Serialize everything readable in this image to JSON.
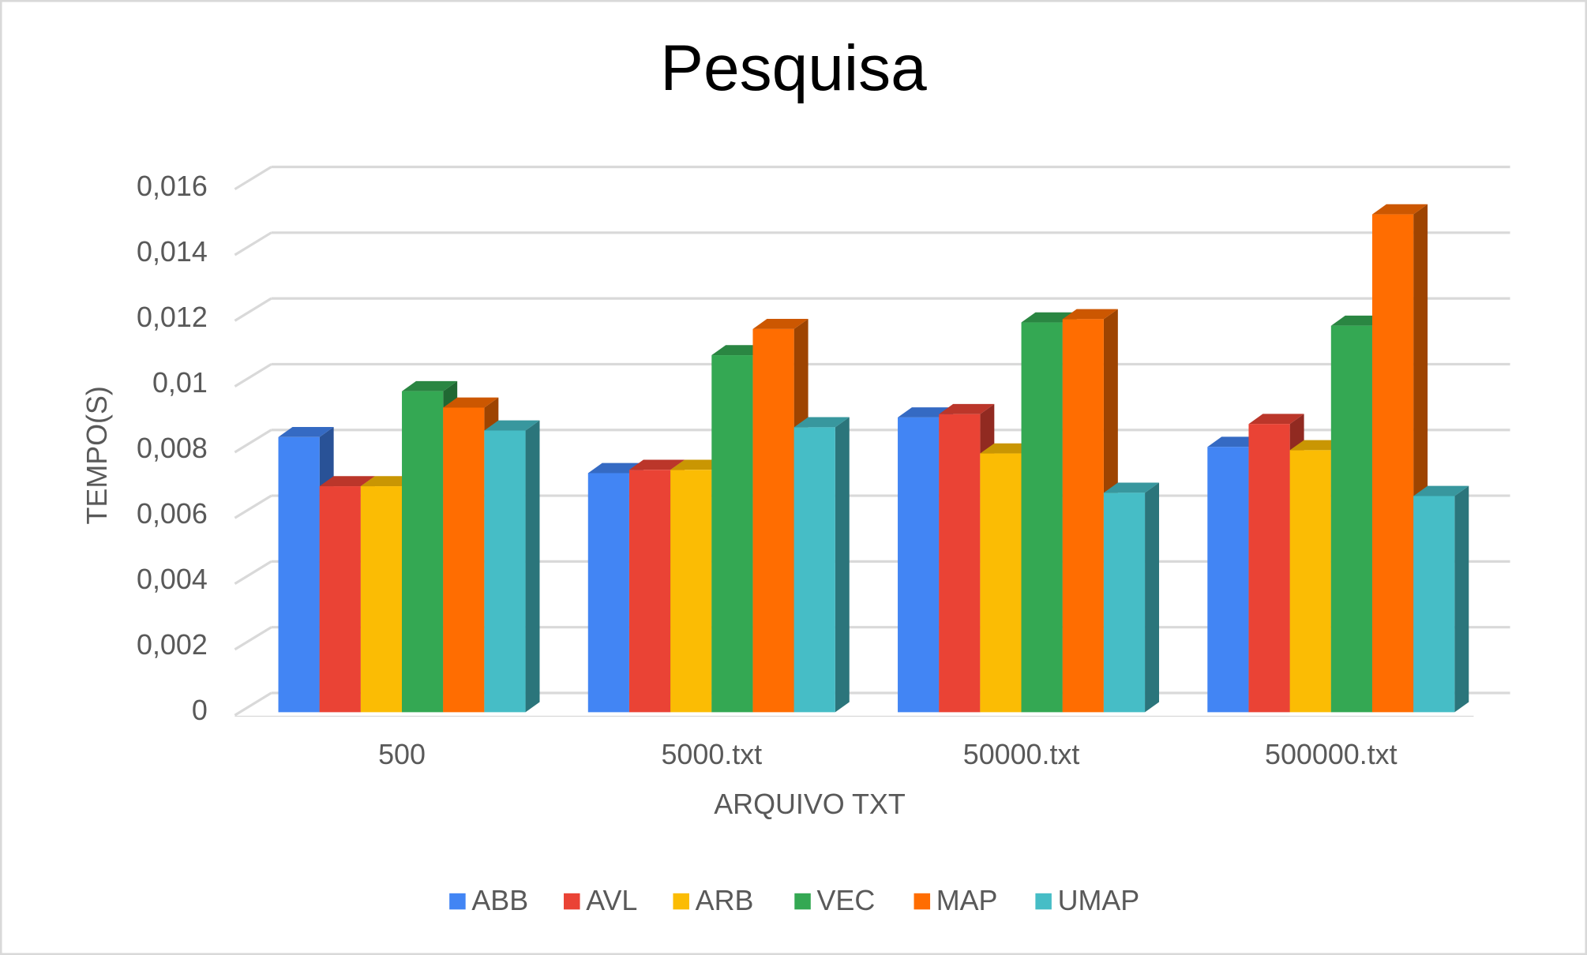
{
  "chart_data": {
    "type": "bar3d",
    "title": "Pesquisa",
    "x_label": "ARQUIVO TXT",
    "y_label": "TEMPO(S)",
    "categories": [
      "500",
      "5000.txt",
      "50000.txt",
      "500000.txt"
    ],
    "series": [
      {
        "name": "ABB",
        "color": "#4285f4",
        "values": [
          0.0084,
          0.0073,
          0.009,
          0.0081
        ]
      },
      {
        "name": "AVL",
        "color": "#ea4335",
        "values": [
          0.0069,
          0.0074,
          0.0091,
          0.0088
        ]
      },
      {
        "name": "ARB",
        "color": "#fbbc04",
        "values": [
          0.0069,
          0.0074,
          0.0079,
          0.008
        ]
      },
      {
        "name": "VEC",
        "color": "#34a853",
        "values": [
          0.0098,
          0.0109,
          0.0119,
          0.0118
        ]
      },
      {
        "name": "MAP",
        "color": "#ff6d01",
        "values": [
          0.0093,
          0.0117,
          0.012,
          0.0152
        ]
      },
      {
        "name": "UMAP",
        "color": "#46bdc6",
        "values": [
          0.0086,
          0.0087,
          0.0067,
          0.0066
        ]
      }
    ],
    "ylim": [
      0,
      0.016
    ],
    "yticks": [
      0,
      {
        "value": 0.002,
        "label": "0,002"
      },
      {
        "value": 0.004,
        "label": "0,004"
      },
      {
        "value": 0.006,
        "label": "0,006"
      },
      {
        "value": 0.008,
        "label": "0,008"
      },
      {
        "value": 0.01,
        "label": "0,01"
      },
      {
        "value": 0.012,
        "label": "0,012"
      },
      {
        "value": 0.014,
        "label": "0,014"
      },
      {
        "value": 0.016,
        "label": "0,016"
      }
    ],
    "grid": true,
    "legend": "bottom"
  }
}
